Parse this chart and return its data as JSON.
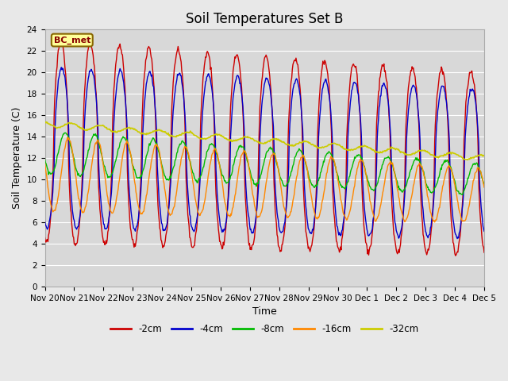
{
  "title": "Soil Temperatures Set B",
  "xlabel": "Time",
  "ylabel": "Soil Temperature (C)",
  "ylim": [
    0,
    24
  ],
  "yticks": [
    0,
    2,
    4,
    6,
    8,
    10,
    12,
    14,
    16,
    18,
    20,
    22,
    24
  ],
  "xtick_labels": [
    "Nov 20",
    "Nov 21",
    "Nov 22",
    "Nov 23",
    "Nov 24",
    "Nov 25",
    "Nov 26",
    "Nov 27",
    "Nov 28",
    "Nov 29",
    "Nov 30",
    "Dec 1",
    "Dec 2",
    "Dec 3",
    "Dec 4",
    "Dec 5"
  ],
  "legend_label": "BC_met",
  "series_colors": [
    "#cc0000",
    "#0000cc",
    "#00bb00",
    "#ff8800",
    "#cccc00"
  ],
  "series_names": [
    "-2cm",
    "-4cm",
    "-8cm",
    "-16cm",
    "-32cm"
  ],
  "plot_bg_color": "#d8d8d8",
  "fig_bg_color": "#e8e8e8",
  "n_days": 15,
  "n_pts_per_day": 48,
  "grid_color": "#ffffff",
  "title_fontsize": 12,
  "axis_label_fontsize": 9,
  "tick_fontsize": 7.5
}
